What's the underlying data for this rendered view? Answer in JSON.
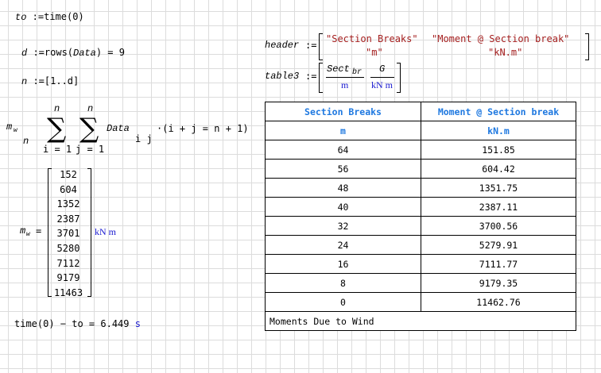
{
  "eq1": {
    "lhs": "to",
    "op": ":=",
    "rhs": "time(0)"
  },
  "eq2": {
    "lhs": "d",
    "op": ":=",
    "fn": "rows",
    "arg": "Data",
    "result": "= 9"
  },
  "eq3": {
    "lhs": "n",
    "op": ":=",
    "rhs": "[1..d]"
  },
  "eq4": {
    "lhs": "m",
    "lhs_sub": "w",
    "lhs_index": "n",
    "upper": "n",
    "lower_i": "i = 1",
    "lower_j": "j = 1",
    "term": "Data",
    "term_sub": "i j",
    "cond": "·(i + j = n + 1)"
  },
  "eq5": {
    "lhs": "m",
    "lhs_sub": "w",
    "values": [
      "152",
      "604",
      "1352",
      "2387",
      "3701",
      "5280",
      "7112",
      "9179",
      "11463"
    ],
    "unit": "kN m"
  },
  "eq6": {
    "expr": "time(0) − to = 6.449",
    "unit": "s"
  },
  "header_def": {
    "lhs": "header",
    "row1": [
      "\"Section Breaks\"",
      "\"Moment @ Section break\""
    ],
    "row2": [
      "\"m\"",
      "\"kN.m\""
    ]
  },
  "table3_def": {
    "lhs": "table3",
    "col1_num": "Sect",
    "col1_sub": "br",
    "col1_den": "m",
    "col2_num": "G",
    "col2_den": "kN m"
  },
  "table": {
    "headers": [
      "Section Breaks",
      "Moment @ Section break"
    ],
    "units": [
      "m",
      "kN.m"
    ],
    "rows": [
      [
        "64",
        "151.85"
      ],
      [
        "56",
        "604.42"
      ],
      [
        "48",
        "1351.75"
      ],
      [
        "40",
        "2387.11"
      ],
      [
        "32",
        "3700.56"
      ],
      [
        "24",
        "5279.91"
      ],
      [
        "16",
        "7111.77"
      ],
      [
        "8",
        "9179.35"
      ],
      [
        "0",
        "11462.76"
      ]
    ],
    "footer": "Moments Due to Wind"
  },
  "colors": {
    "unit": "#1a1ad0",
    "string": "#a52020",
    "table_header": "#1e78e0"
  }
}
